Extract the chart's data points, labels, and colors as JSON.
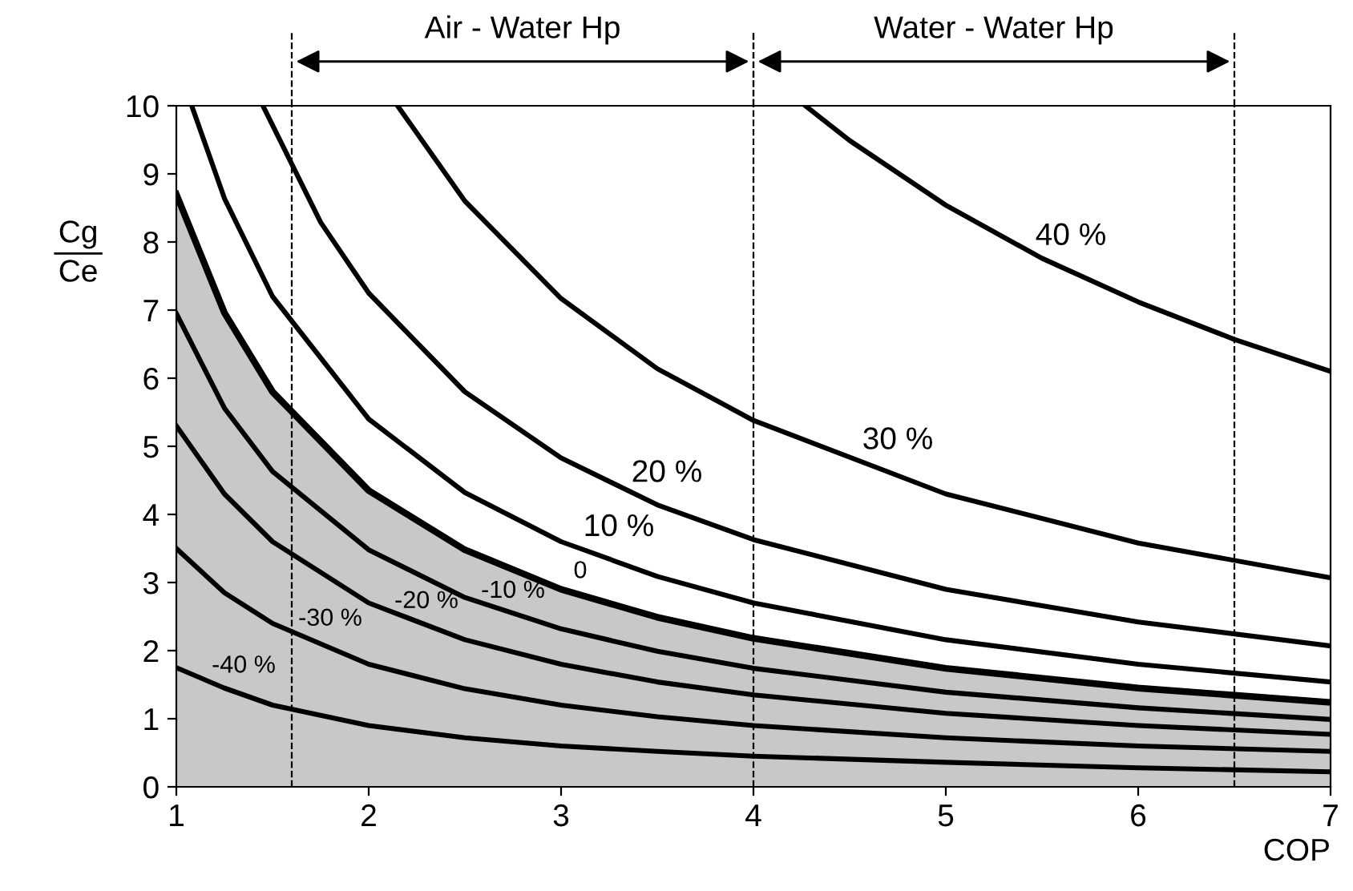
{
  "chart_data": {
    "type": "line",
    "xlabel": "COP",
    "ylabel": "Cg\nCe",
    "xlim": [
      1,
      7
    ],
    "ylim": [
      0,
      10
    ],
    "xticks": [
      1,
      2,
      3,
      4,
      5,
      6,
      7
    ],
    "yticks": [
      0,
      1,
      2,
      3,
      4,
      5,
      6,
      7,
      8,
      9,
      10
    ],
    "grid": false,
    "marker": "none",
    "line_style": "solid",
    "series": [
      {
        "name": "40 %",
        "color": "#000000",
        "x": [
          4.27,
          4.5,
          5,
          5.5,
          6,
          6.5,
          7
        ],
        "values": [
          10,
          9.49,
          8.54,
          7.76,
          7.12,
          6.57,
          6.1
        ]
      },
      {
        "name": "30 %",
        "color": "#000000",
        "x": [
          2.15,
          2.5,
          3,
          3.5,
          4,
          5,
          6,
          7
        ],
        "values": [
          10,
          8.6,
          7.17,
          6.14,
          5.38,
          4.3,
          3.58,
          3.07
        ]
      },
      {
        "name": "20 %",
        "color": "#000000",
        "x": [
          1.45,
          1.75,
          2,
          2.5,
          3,
          3.5,
          4,
          5,
          6,
          7
        ],
        "values": [
          10,
          8.29,
          7.25,
          5.8,
          4.83,
          4.14,
          3.63,
          2.9,
          2.42,
          2.07
        ]
      },
      {
        "name": "10 %",
        "color": "#000000",
        "x": [
          1.08,
          1.25,
          1.5,
          2,
          2.5,
          3,
          3.5,
          4,
          5,
          6,
          7
        ],
        "values": [
          10,
          8.64,
          7.2,
          5.4,
          4.32,
          3.6,
          3.09,
          2.7,
          2.16,
          1.8,
          1.54
        ]
      },
      {
        "name": "0",
        "type": "area",
        "color": "#c8c8c8",
        "x": [
          1,
          1.25,
          1.5,
          2,
          2.5,
          3,
          3.5,
          4,
          5,
          6,
          7
        ],
        "values": [
          8.7,
          6.96,
          5.8,
          4.35,
          3.48,
          2.9,
          2.49,
          2.18,
          1.74,
          1.45,
          1.24
        ]
      },
      {
        "name": "-10 %",
        "color": "#000000",
        "x": [
          1,
          1.25,
          1.5,
          2,
          2.5,
          3,
          3.5,
          4,
          5,
          6,
          7
        ],
        "values": [
          6.95,
          5.56,
          4.63,
          3.48,
          2.78,
          2.32,
          1.99,
          1.74,
          1.39,
          1.16,
          0.99
        ]
      },
      {
        "name": "-20 %",
        "color": "#000000",
        "x": [
          1,
          1.25,
          1.5,
          2,
          2.5,
          3,
          3.5,
          4,
          5,
          6,
          7
        ],
        "values": [
          5.3,
          4.3,
          3.6,
          2.7,
          2.16,
          1.8,
          1.54,
          1.35,
          1.08,
          0.9,
          0.77
        ]
      },
      {
        "name": "-30 %",
        "color": "#000000",
        "x": [
          1,
          1.25,
          1.5,
          2,
          2.5,
          3,
          3.5,
          4,
          5,
          6,
          7
        ],
        "values": [
          3.5,
          2.85,
          2.4,
          1.8,
          1.44,
          1.2,
          1.03,
          0.9,
          0.72,
          0.6,
          0.52
        ]
      },
      {
        "name": "-40 %",
        "color": "#000000",
        "x": [
          1,
          1.25,
          1.5,
          2,
          2.5,
          3,
          3.5,
          4,
          5,
          6,
          7
        ],
        "values": [
          1.75,
          1.45,
          1.2,
          0.9,
          0.72,
          0.6,
          0.52,
          0.45,
          0.36,
          0.28,
          0.22
        ]
      }
    ],
    "ref_lines": [
      {
        "axis": "x",
        "value": 1.6,
        "line_style": "dashed",
        "color": "#000000"
      },
      {
        "axis": "x",
        "value": 4,
        "line_style": "dashed",
        "color": "#000000"
      },
      {
        "axis": "x",
        "value": 6.5,
        "line_style": "dashed",
        "color": "#000000"
      }
    ],
    "annotations": [
      "Air - Water Hp",
      "Water - Water Hp"
    ]
  }
}
